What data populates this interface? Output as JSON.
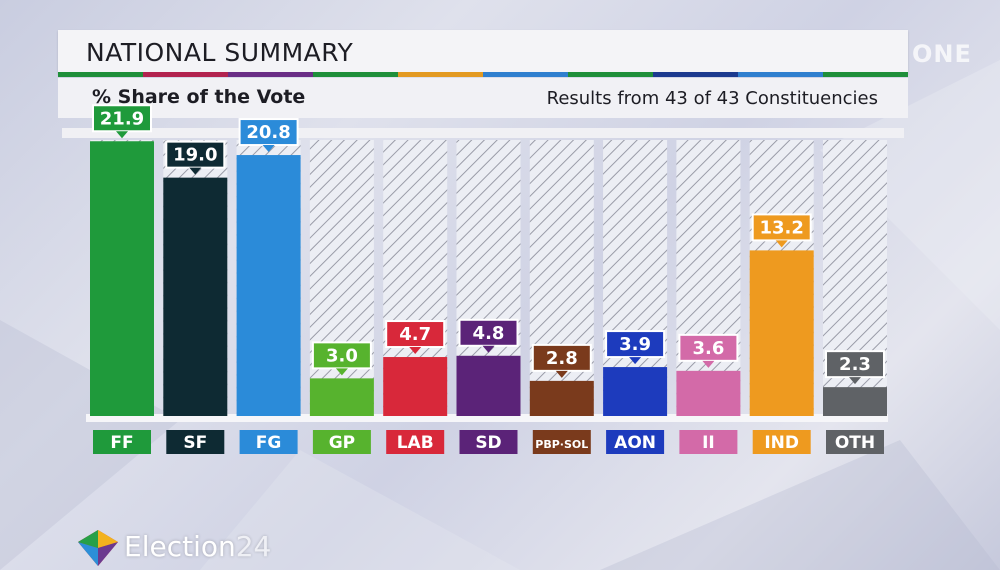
{
  "header": {
    "title": "NATIONAL SUMMARY",
    "subtitle": "% Share of the Vote",
    "results_text": "Results from 43 of 43 Constituencies",
    "channel_logo": "ONE"
  },
  "footer": {
    "brand": "Election",
    "brand_year": "24"
  },
  "stripe_colors": [
    "#1f8f3a",
    "#b2234f",
    "#6a2e86",
    "#1f8f3a",
    "#e39a22",
    "#2f7fcf",
    "#1f8f3a",
    "#1c3a8f",
    "#2f7fcf",
    "#1f8f3a"
  ],
  "chart_data": {
    "type": "bar",
    "title": "% Share of the Vote",
    "categories": [
      "FF",
      "SF",
      "FG",
      "GP",
      "LAB",
      "SD",
      "PBP-SOL",
      "AON",
      "II",
      "IND",
      "OTH"
    ],
    "category_labels": [
      "FF",
      "SF",
      "FG",
      "GP",
      "LAB",
      "SD",
      "PBP·SOL",
      "AON",
      "II",
      "IND",
      "OTH"
    ],
    "values": [
      21.9,
      19.0,
      20.8,
      3.0,
      4.7,
      4.8,
      2.8,
      3.9,
      3.6,
      13.2,
      2.3
    ],
    "value_labels": [
      "21.9",
      "19.0",
      "20.8",
      "3.0",
      "4.7",
      "4.8",
      "2.8",
      "3.9",
      "3.6",
      "13.2",
      "2.3"
    ],
    "colors": [
      "#1f9a3b",
      "#0e2a33",
      "#2b8bd9",
      "#57b32e",
      "#d8283a",
      "#5b2378",
      "#7a3a1c",
      "#1d3bbd",
      "#d36aa8",
      "#ee9a1f",
      "#5f6266"
    ],
    "ylim": [
      0,
      22
    ],
    "grid": false,
    "legend": "none"
  }
}
